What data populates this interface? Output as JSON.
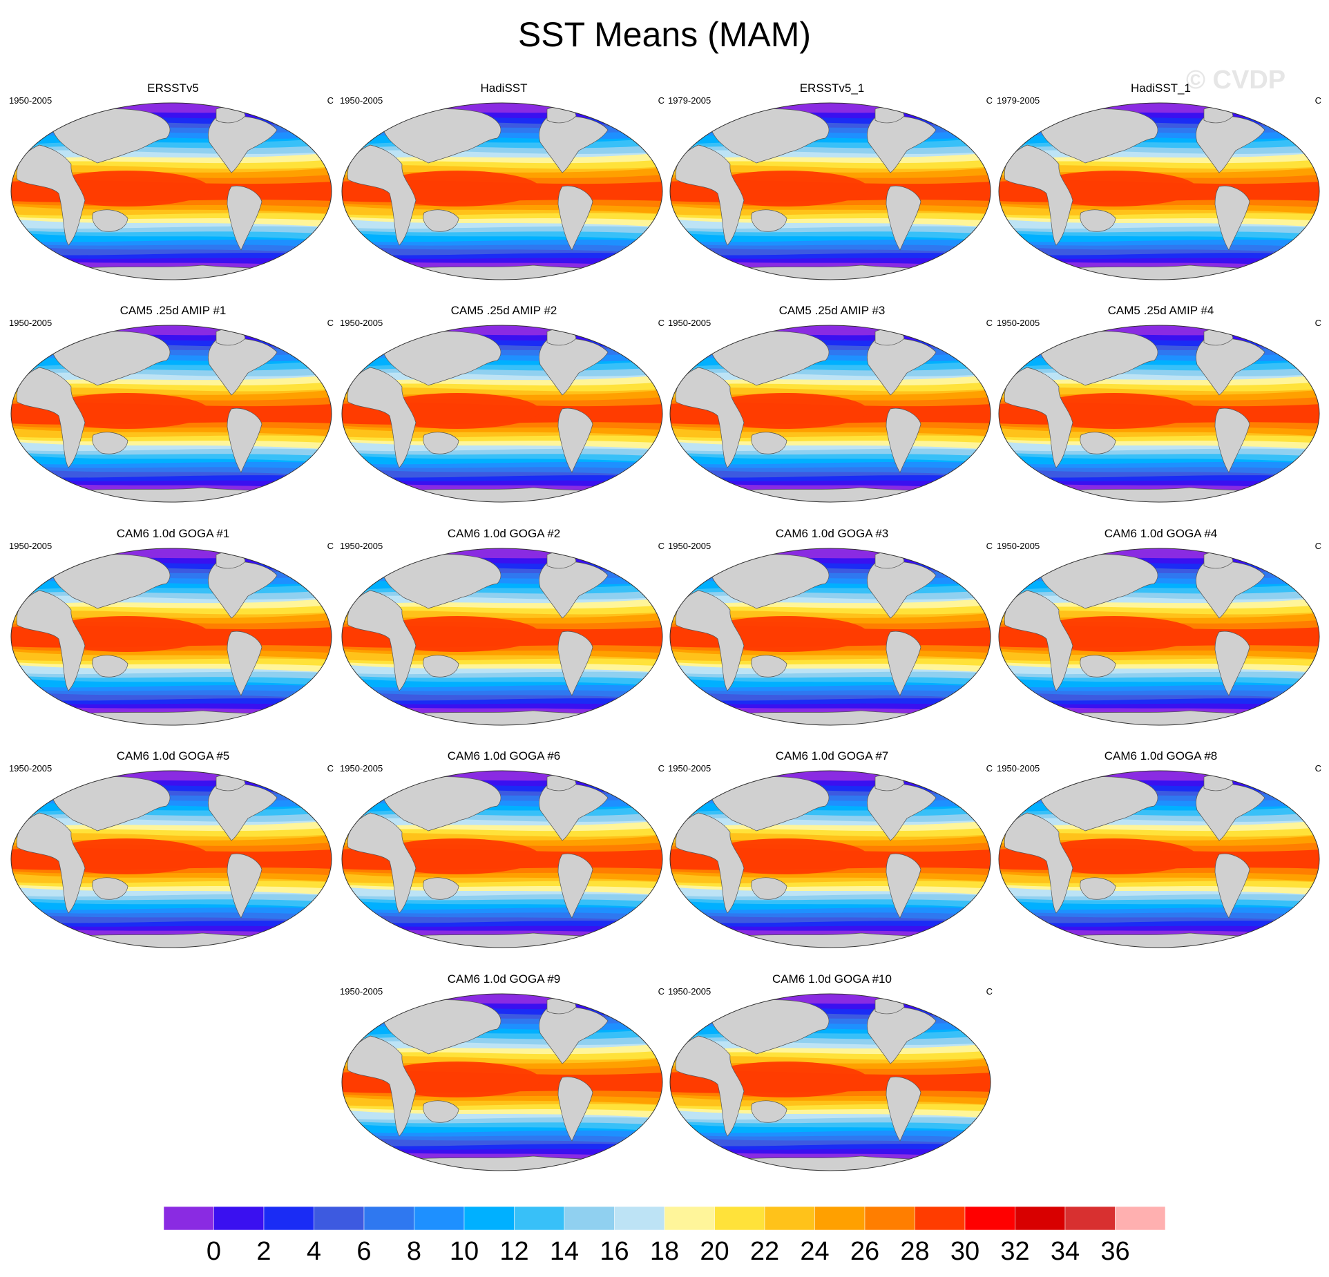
{
  "title": "SST Means (MAM)",
  "watermark": "© CVDP",
  "units": "C",
  "panels": [
    {
      "title": "ERSSTv5",
      "years": "1950-2005"
    },
    {
      "title": "HadiSST",
      "years": "1950-2005"
    },
    {
      "title": "ERSSTv5_1",
      "years": "1979-2005"
    },
    {
      "title": "HadiSST_1",
      "years": "1979-2005"
    },
    {
      "title": "CAM5 .25d AMIP #1",
      "years": "1950-2005"
    },
    {
      "title": "CAM5 .25d AMIP #2",
      "years": "1950-2005"
    },
    {
      "title": "CAM5 .25d AMIP #3",
      "years": "1950-2005"
    },
    {
      "title": "CAM5 .25d AMIP #4",
      "years": "1950-2005"
    },
    {
      "title": "CAM6 1.0d GOGA #1",
      "years": "1950-2005"
    },
    {
      "title": "CAM6 1.0d GOGA #2",
      "years": "1950-2005"
    },
    {
      "title": "CAM6 1.0d GOGA #3",
      "years": "1950-2005"
    },
    {
      "title": "CAM6 1.0d GOGA #4",
      "years": "1950-2005"
    },
    {
      "title": "CAM6 1.0d GOGA #5",
      "years": "1950-2005"
    },
    {
      "title": "CAM6 1.0d GOGA #6",
      "years": "1950-2005"
    },
    {
      "title": "CAM6 1.0d GOGA #7",
      "years": "1950-2005"
    },
    {
      "title": "CAM6 1.0d GOGA #8",
      "years": "1950-2005"
    },
    {
      "title": "CAM6 1.0d GOGA #9",
      "years": "1950-2005"
    },
    {
      "title": "CAM6 1.0d GOGA #10",
      "years": "1950-2005"
    }
  ],
  "colorbar": {
    "colors": [
      "#8a2be2",
      "#3a10f0",
      "#1a2cf5",
      "#3d5ae0",
      "#2f78f0",
      "#1e90ff",
      "#00b0ff",
      "#38c0f8",
      "#90d0f0",
      "#bde3f5",
      "#fff59a",
      "#ffe23a",
      "#ffc21a",
      "#ffa000",
      "#ff7e00",
      "#ff3c00",
      "#ff0000",
      "#d80000",
      "#d83030",
      "#ffb0b0"
    ],
    "labels": [
      "0",
      "2",
      "4",
      "6",
      "8",
      "10",
      "12",
      "14",
      "16",
      "18",
      "20",
      "22",
      "24",
      "26",
      "28",
      "30",
      "32",
      "34",
      "36"
    ]
  },
  "land_color": "#d0d0d0"
}
